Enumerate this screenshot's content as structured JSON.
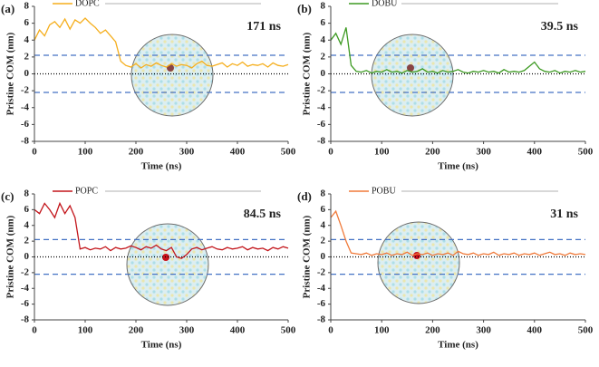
{
  "chart_data": [
    {
      "type": "line",
      "panel_label": "(a)",
      "annotation": "171 ns",
      "x_label": "Time (ns)",
      "y_label": "Pristine COM (nm)",
      "x": [
        0,
        10,
        20,
        30,
        40,
        50,
        60,
        70,
        80,
        90,
        100,
        110,
        120,
        130,
        140,
        150,
        160,
        170,
        180,
        190,
        200,
        210,
        220,
        230,
        240,
        250,
        260,
        270,
        280,
        290,
        300,
        310,
        320,
        330,
        340,
        350,
        360,
        370,
        380,
        390,
        400,
        410,
        420,
        430,
        440,
        450,
        460,
        470,
        480,
        490,
        500
      ],
      "series": [
        {
          "name": "DOPC",
          "color": "#f5ae1c",
          "values": [
            4,
            5.2,
            4.5,
            5.8,
            6.2,
            5.5,
            6.5,
            5.3,
            6.4,
            6.0,
            6.6,
            6.0,
            5.5,
            4.8,
            5.2,
            4.5,
            3.8,
            1.5,
            1.0,
            0.8,
            1.2,
            0.7,
            1.1,
            0.9,
            1.3,
            1.0,
            0.8,
            1.2,
            0.9,
            1.1,
            1.0,
            0.7,
            1.2,
            1.5,
            1.0,
            0.9,
            1.1,
            1.3,
            0.8,
            1.2,
            1.0,
            1.4,
            0.9,
            1.1,
            1.0,
            1.2,
            0.8,
            1.3,
            1.0,
            0.9,
            1.1
          ]
        }
      ],
      "xlim": [
        0,
        500
      ],
      "ylim": [
        -8,
        8
      ],
      "xticks": [
        0,
        100,
        200,
        300,
        400,
        500
      ],
      "yticks": [
        -8,
        -6,
        -4,
        -2,
        0,
        2,
        4,
        6,
        8
      ],
      "hlines": [
        {
          "y": 2.2,
          "color": "#4472c4",
          "dash": "6,4"
        },
        {
          "y": -2.2,
          "color": "#4472c4",
          "dash": "6,4"
        },
        {
          "y": 0,
          "color": "#000000",
          "dash": "1,2"
        }
      ]
    },
    {
      "type": "line",
      "panel_label": "(b)",
      "annotation": "39.5 ns",
      "x_label": "Time (ns)",
      "y_label": "Pristine COM (nm)",
      "x": [
        0,
        10,
        20,
        30,
        40,
        50,
        60,
        70,
        80,
        90,
        100,
        110,
        120,
        130,
        140,
        150,
        160,
        170,
        180,
        190,
        200,
        210,
        220,
        230,
        240,
        250,
        260,
        270,
        280,
        290,
        300,
        310,
        320,
        330,
        340,
        350,
        360,
        370,
        380,
        390,
        400,
        410,
        420,
        430,
        440,
        450,
        460,
        470,
        480,
        490,
        500
      ],
      "series": [
        {
          "name": "DOBU",
          "color": "#3d9a22",
          "values": [
            4.0,
            4.8,
            3.5,
            5.5,
            1.0,
            0.3,
            0.2,
            0.4,
            0.1,
            0.3,
            0.2,
            0.5,
            0.2,
            0.3,
            0.1,
            0.4,
            0.2,
            0.3,
            0.6,
            0.2,
            0.3,
            0.1,
            0.4,
            0.2,
            0.3,
            0.5,
            0.2,
            0.1,
            0.3,
            0.2,
            0.4,
            0.2,
            0.3,
            0.1,
            0.5,
            0.2,
            0.3,
            0.2,
            0.4,
            0.9,
            1.4,
            0.6,
            0.3,
            0.2,
            0.4,
            0.1,
            0.3,
            0.2,
            0.4,
            0.2,
            0.3
          ]
        }
      ],
      "xlim": [
        0,
        500
      ],
      "ylim": [
        -8,
        8
      ],
      "xticks": [
        0,
        100,
        200,
        300,
        400,
        500
      ],
      "yticks": [
        -8,
        -6,
        -4,
        -2,
        0,
        2,
        4,
        6,
        8
      ],
      "hlines": [
        {
          "y": 2.2,
          "color": "#4472c4",
          "dash": "6,4"
        },
        {
          "y": -2.2,
          "color": "#4472c4",
          "dash": "6,4"
        },
        {
          "y": 0,
          "color": "#000000",
          "dash": "1,2"
        }
      ]
    },
    {
      "type": "line",
      "panel_label": "(c)",
      "annotation": "84.5 ns",
      "x_label": "Time (ns)",
      "y_label": "Pristine COM (nm)",
      "x": [
        0,
        10,
        20,
        30,
        40,
        50,
        60,
        70,
        80,
        90,
        100,
        110,
        120,
        130,
        140,
        150,
        160,
        170,
        180,
        190,
        200,
        210,
        220,
        230,
        240,
        250,
        260,
        270,
        280,
        290,
        300,
        310,
        320,
        330,
        340,
        350,
        360,
        370,
        380,
        390,
        400,
        410,
        420,
        430,
        440,
        450,
        460,
        470,
        480,
        490,
        500
      ],
      "series": [
        {
          "name": "POPC",
          "color": "#c3161c",
          "values": [
            6.0,
            5.5,
            6.8,
            6.0,
            5.0,
            6.8,
            5.5,
            6.5,
            5.0,
            1.0,
            1.2,
            0.9,
            1.1,
            1.0,
            1.3,
            0.8,
            1.2,
            1.0,
            1.1,
            1.4,
            1.2,
            0.9,
            1.3,
            1.1,
            1.5,
            1.0,
            0.8,
            1.2,
            0.0,
            -0.2,
            0.3,
            1.0,
            1.2,
            0.9,
            1.1,
            1.3,
            1.0,
            0.9,
            1.2,
            1.0,
            1.1,
            1.3,
            0.9,
            1.2,
            1.0,
            1.1,
            0.8,
            1.2,
            1.0,
            1.3,
            1.1
          ]
        }
      ],
      "xlim": [
        0,
        500
      ],
      "ylim": [
        -8,
        8
      ],
      "xticks": [
        0,
        100,
        200,
        300,
        400,
        500
      ],
      "yticks": [
        -8,
        -6,
        -4,
        -2,
        0,
        2,
        4,
        6,
        8
      ],
      "hlines": [
        {
          "y": 2.2,
          "color": "#4472c4",
          "dash": "6,4"
        },
        {
          "y": -2.2,
          "color": "#4472c4",
          "dash": "6,4"
        },
        {
          "y": 0,
          "color": "#000000",
          "dash": "1,2"
        }
      ]
    },
    {
      "type": "line",
      "panel_label": "(d)",
      "annotation": "31 ns",
      "x_label": "Time (ns)",
      "y_label": "Pristine COM (nm)",
      "x": [
        0,
        10,
        20,
        30,
        40,
        50,
        60,
        70,
        80,
        90,
        100,
        110,
        120,
        130,
        140,
        150,
        160,
        170,
        180,
        190,
        200,
        210,
        220,
        230,
        240,
        250,
        260,
        270,
        280,
        290,
        300,
        310,
        320,
        330,
        340,
        350,
        360,
        370,
        380,
        390,
        400,
        410,
        420,
        430,
        440,
        450,
        460,
        470,
        480,
        490,
        500
      ],
      "series": [
        {
          "name": "POBU",
          "color": "#f07a3a",
          "values": [
            5.0,
            5.8,
            4.0,
            2.0,
            0.5,
            0.4,
            0.3,
            0.5,
            0.2,
            0.4,
            0.3,
            0.5,
            0.2,
            0.4,
            0.3,
            0.6,
            0.2,
            0.4,
            0.3,
            0.5,
            0.2,
            0.4,
            0.3,
            0.5,
            0.2,
            0.7,
            0.4,
            0.3,
            0.5,
            0.2,
            0.4,
            0.3,
            0.6,
            0.2,
            0.4,
            0.3,
            0.5,
            0.2,
            0.4,
            0.3,
            0.5,
            0.2,
            0.4,
            0.6,
            0.3,
            0.4,
            0.2,
            0.5,
            0.3,
            0.4,
            0.3
          ]
        }
      ],
      "xlim": [
        0,
        500
      ],
      "ylim": [
        -8,
        8
      ],
      "xticks": [
        0,
        100,
        200,
        300,
        400,
        500
      ],
      "yticks": [
        -8,
        -6,
        -4,
        -2,
        0,
        2,
        4,
        6,
        8
      ],
      "hlines": [
        {
          "y": 2.2,
          "color": "#4472c4",
          "dash": "6,4"
        },
        {
          "y": -2.2,
          "color": "#4472c4",
          "dash": "6,4"
        },
        {
          "y": 0,
          "color": "#000000",
          "dash": "1,2"
        }
      ]
    }
  ]
}
